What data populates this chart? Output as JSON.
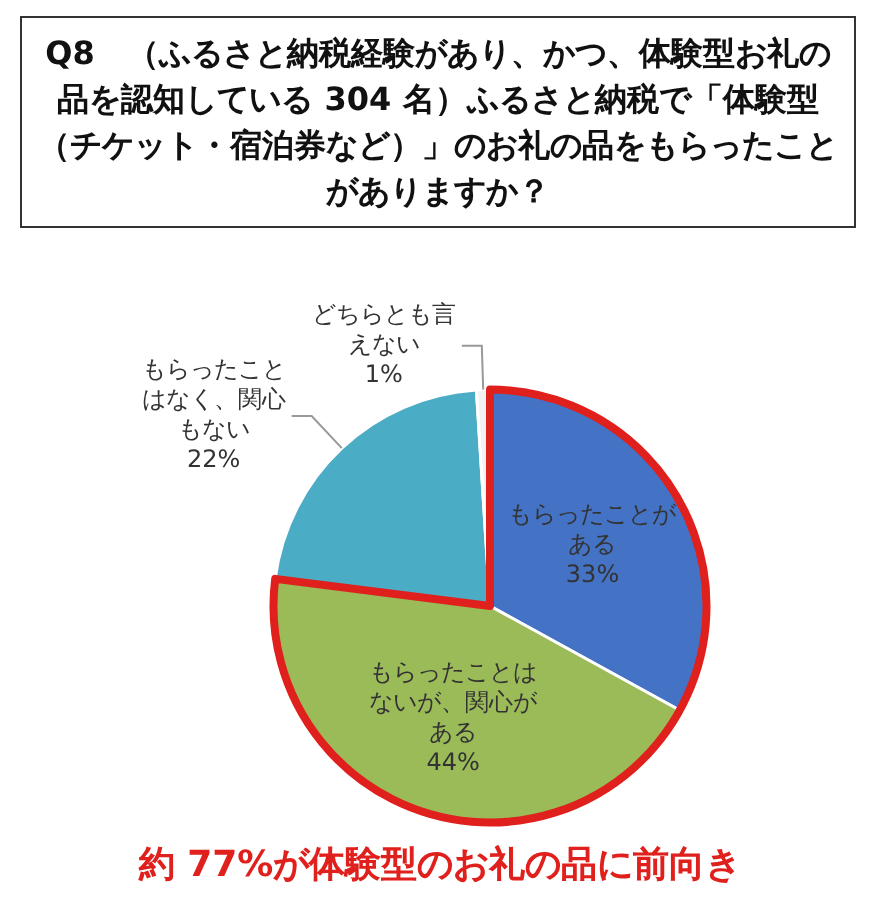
{
  "chart_data": {
    "type": "pie",
    "title": "Q8　（ふるさと納税経験があり、かつ、体験型お礼の品を認知している 304 名）ふるさと納税で「体験型（チケット・宿泊券など）」のお礼の品をもらったことがありますか？",
    "categories": [
      "もらったことがある",
      "もらったことはないが、関心がある",
      "もらったことはなく、関心もない",
      "どちらとも言えない"
    ],
    "values": [
      33,
      44,
      22,
      1
    ],
    "value_labels": [
      "33%",
      "44%",
      "22%",
      "1%"
    ],
    "colors": [
      "#4472c4",
      "#9bbb59",
      "#4bacc6",
      "#f2f2f2"
    ],
    "annotations": [
      "約 77%が体験型のお礼の品に前向き"
    ]
  }
}
